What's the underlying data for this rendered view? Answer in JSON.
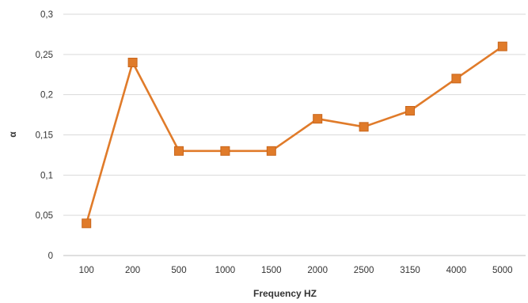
{
  "chart_data": {
    "type": "line",
    "title": "",
    "xlabel": "Frequency HZ",
    "ylabel": "α",
    "categories": [
      "100",
      "200",
      "500",
      "1000",
      "1500",
      "2000",
      "2500",
      "3150",
      "4000",
      "5000"
    ],
    "series": [
      {
        "values": [
          0.04,
          0.24,
          0.13,
          0.13,
          0.13,
          0.17,
          0.16,
          0.18,
          0.22,
          0.26
        ],
        "color": "#E07B2A",
        "marker": "square"
      }
    ],
    "ylim": [
      0,
      0.3
    ],
    "yticks": [
      {
        "value": 0,
        "label": "0"
      },
      {
        "value": 0.05,
        "label": "0,05"
      },
      {
        "value": 0.1,
        "label": "0,1"
      },
      {
        "value": 0.15,
        "label": "0,15"
      },
      {
        "value": 0.2,
        "label": "0,2"
      },
      {
        "value": 0.25,
        "label": "0,25"
      },
      {
        "value": 0.3,
        "label": "0,3"
      }
    ],
    "grid": true,
    "gridline_color": "#D9D9D9",
    "legend": "none"
  }
}
